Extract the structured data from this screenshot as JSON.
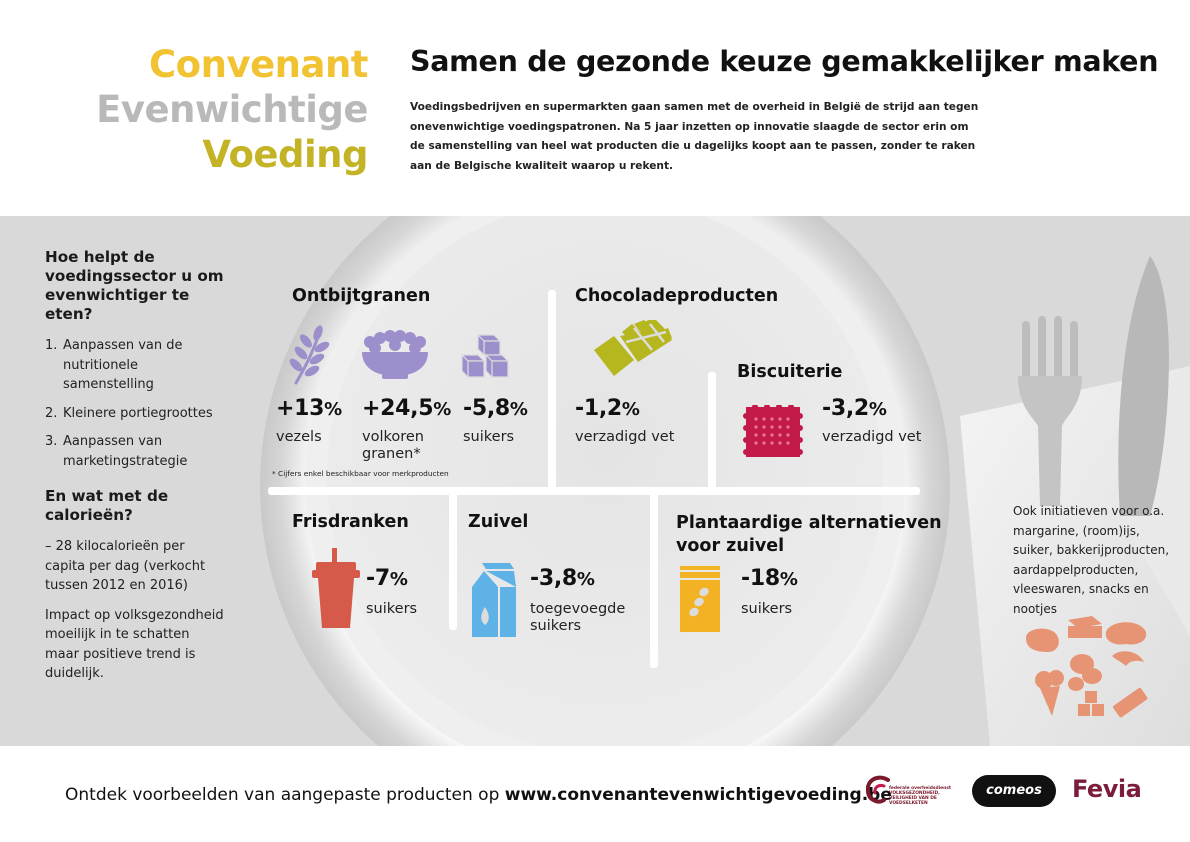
{
  "brand": {
    "line1": "Convenant",
    "line2": "Evenwichtige",
    "line3": "Voeding"
  },
  "headline": "Samen de gezonde keuze gemakkelijker maken",
  "intro": "Voedingsbedrijven en supermarkten gaan samen met de overheid in België de strijd aan tegen onevenwichtige voedingspatronen. Na 5 jaar inzetten op innovatie slaagde de sector erin om de samenstelling van heel wat producten die u dagelijks koopt aan te passen, zonder te raken aan de Belgische kwaliteit waarop u rekent.",
  "left": {
    "question1": "Hoe helpt de voedingssector u om evenwichtiger te eten?",
    "steps": [
      {
        "num": "1.",
        "text": "Aanpassen van de nutritionele samenstelling"
      },
      {
        "num": "2.",
        "text": "Kleinere portiegroottes"
      },
      {
        "num": "3.",
        "text": "Aanpassen van marketingstrategie"
      }
    ],
    "question2": "En wat met de calorieën?",
    "calories": "– 28 kilocalorieën per capita per dag (verkocht tussen 2012 en 2016)",
    "impact": "Impact op volksgezondheid moeilijk in te schatten maar positieve trend is duidelijk."
  },
  "sections": {
    "ontbijt": {
      "title": "Ontbijtgranen",
      "items": [
        {
          "value": "+13",
          "unit": "%",
          "label": "vezels",
          "icon": "wheat-icon"
        },
        {
          "value": "+24,5",
          "unit": "%",
          "label": "volkoren granen*",
          "icon": "cereal-bowl-icon"
        },
        {
          "value": "-5,8",
          "unit": "%",
          "label": "suikers",
          "icon": "sugar-cubes-icon"
        }
      ],
      "footnote": "* Cijfers enkel beschikbaar voor merkproducten"
    },
    "choco": {
      "title": "Chocoladeproducten",
      "value": "-1,2",
      "unit": "%",
      "label": "verzadigd vet",
      "icon": "chocolate-bar-icon"
    },
    "biscuit": {
      "title": "Biscuiterie",
      "value": "-3,2",
      "unit": "%",
      "label": "verzadigd vet",
      "icon": "biscuit-icon"
    },
    "fris": {
      "title": "Frisdranken",
      "value": "-7",
      "unit": "%",
      "label": "suikers",
      "icon": "soda-cup-icon"
    },
    "zuivel": {
      "title": "Zuivel",
      "value": "-3,8",
      "unit": "%",
      "label": "toegevoegde suikers",
      "icon": "milk-carton-icon"
    },
    "plant": {
      "title": "Plantaardige alternatieven voor zuivel",
      "value": "-18",
      "unit": "%",
      "label": "suikers",
      "icon": "soy-carton-icon"
    }
  },
  "other_initiatives": "Ook initiatieven voor o.a. margarine, (room)ijs, suiker, bakkerijproducten, aardappelproducten, vleeswaren, snacks en nootjes",
  "footer": {
    "text": "Ontdek voorbeelden van aangepaste producten op ",
    "url": "www.convenantevenwichtigevoeding.be"
  },
  "logos": {
    "fod": "federale overheidsdienst VOLKSGEZONDHEID, VEILIGHEID VAN DE VOEDSELKETEN",
    "comeos": "comeos",
    "fevia": "Fevia"
  },
  "colors": {
    "yellow": "#f1c232",
    "olive": "#c3b325",
    "grey_text": "#b9b9b9",
    "purple": "#9c8fcb",
    "lime": "#b6b61e",
    "raspberry": "#c41a49",
    "red": "#d65a4a",
    "blue": "#5fb2e5",
    "orange": "#f2b223",
    "salmon": "#e79475",
    "band": "#dcdcdc"
  }
}
